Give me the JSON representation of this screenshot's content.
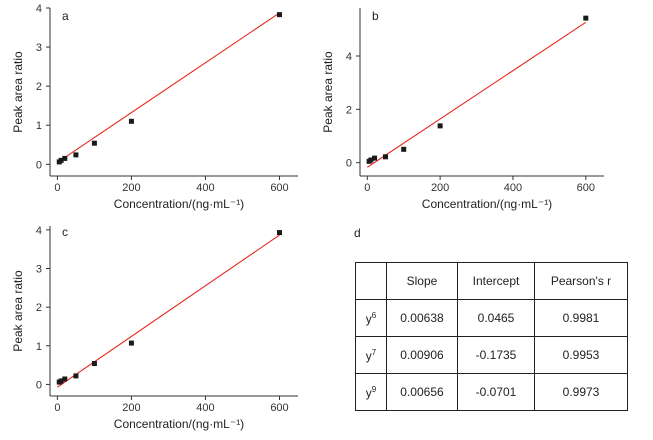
{
  "chart_data": [
    {
      "type": "scatter",
      "panel": "a",
      "xlabel": "Concentration/(ng·mL⁻¹)",
      "ylabel": "Peak area ratio",
      "xlim": [
        -20,
        650
      ],
      "ylim": [
        -0.3,
        4.0
      ],
      "xticks": [
        "0",
        "200",
        "400",
        "600"
      ],
      "yticks": [
        "0",
        "1",
        "2",
        "3",
        "4"
      ],
      "x": [
        5,
        10,
        20,
        50,
        100,
        200,
        600
      ],
      "y": [
        0.06,
        0.1,
        0.15,
        0.24,
        0.54,
        1.1,
        3.83
      ],
      "fit": {
        "slope": 0.00638,
        "intercept": 0.0465,
        "color": "#e8281e"
      },
      "marker_color": "#1a1a1a"
    },
    {
      "type": "scatter",
      "panel": "b",
      "xlabel": "Concentration/(ng·mL⁻¹)",
      "ylabel": "Peak area ratio",
      "xlim": [
        -20,
        650
      ],
      "ylim": [
        -0.5,
        5.8
      ],
      "xticks": [
        "0",
        "200",
        "400",
        "600"
      ],
      "yticks": [
        "0",
        "2",
        "4"
      ],
      "x": [
        5,
        10,
        20,
        50,
        100,
        200,
        600
      ],
      "y": [
        0.05,
        0.1,
        0.17,
        0.22,
        0.5,
        1.38,
        5.42
      ],
      "fit": {
        "slope": 0.00906,
        "intercept": -0.1735,
        "color": "#e8281e"
      },
      "marker_color": "#1a1a1a"
    },
    {
      "type": "scatter",
      "panel": "c",
      "xlabel": "Concentration/(ng·mL⁻¹)",
      "ylabel": "Peak area ratio",
      "xlim": [
        -20,
        650
      ],
      "ylim": [
        -0.3,
        4.1
      ],
      "xticks": [
        "0",
        "200",
        "400",
        "600"
      ],
      "yticks": [
        "0",
        "1",
        "2",
        "3",
        "4"
      ],
      "x": [
        5,
        10,
        20,
        50,
        100,
        200,
        600
      ],
      "y": [
        0.06,
        0.09,
        0.14,
        0.22,
        0.54,
        1.07,
        3.93
      ],
      "fit": {
        "slope": 0.00656,
        "intercept": -0.0701,
        "color": "#e8281e"
      },
      "marker_color": "#1a1a1a"
    }
  ],
  "table": {
    "panel": "d",
    "headers": [
      "",
      "Slope",
      "Intercept",
      "Pearson's r"
    ],
    "rows": [
      {
        "label_base": "y",
        "label_sup": "6",
        "slope": "0.00638",
        "intercept": "0.0465",
        "r": "0.9981"
      },
      {
        "label_base": "y",
        "label_sup": "7",
        "slope": "0.00906",
        "intercept": "-0.1735",
        "r": "0.9953"
      },
      {
        "label_base": "y",
        "label_sup": "9",
        "slope": "0.00656",
        "intercept": "-0.0701",
        "r": "0.9973"
      }
    ]
  }
}
